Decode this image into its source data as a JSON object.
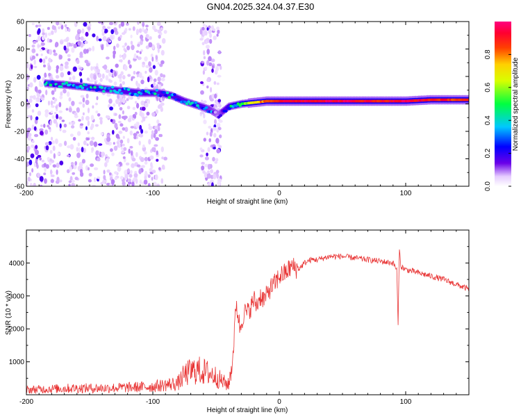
{
  "title": "GN04.2025.324.04.37.E30",
  "chart_data": [
    {
      "type": "heatmap",
      "title": "GN04.2025.324.04.37.E30",
      "xlabel": "Height of straight line (km)",
      "ylabel": "Frequency (Hz)",
      "xlim": [
        -200,
        150
      ],
      "ylim": [
        -60,
        60
      ],
      "xticks": [
        "-200",
        "-100",
        "0",
        "100"
      ],
      "yticks": [
        "-60",
        "-40",
        "-20",
        "0",
        "20",
        "40",
        "60"
      ],
      "colorbar": {
        "label": "Normalized spectral amplitude",
        "range": [
          0,
          1
        ],
        "ticks": [
          "0.0",
          "0.2",
          "0.4",
          "0.6",
          "0.8"
        ]
      },
      "ridge": {
        "x": [
          -185,
          -170,
          -150,
          -130,
          -110,
          -95,
          -85,
          -75,
          -65,
          -55,
          -48,
          -40,
          -30,
          -20,
          -10,
          0,
          20,
          50,
          80,
          100,
          120,
          150
        ],
        "freq": [
          15,
          14,
          12,
          10,
          8,
          8,
          6,
          2,
          -1,
          -4,
          -8,
          -2,
          0,
          1,
          2,
          2,
          2,
          2,
          2,
          2,
          3,
          3
        ],
        "amplitude": [
          0.35,
          0.3,
          0.35,
          0.3,
          0.35,
          0.3,
          0.35,
          0.3,
          0.35,
          0.25,
          0.2,
          0.35,
          0.5,
          0.7,
          0.85,
          0.9,
          0.95,
          0.95,
          0.9,
          0.95,
          0.9,
          0.85
        ]
      },
      "noise_regions": [
        {
          "x_start": -200,
          "x_end": -90,
          "freq_range": [
            -60,
            60
          ]
        },
        {
          "x_start": -62,
          "x_end": -46,
          "freq_range": [
            -60,
            60
          ]
        }
      ]
    },
    {
      "type": "line",
      "xlabel": "Height of straight line (km)",
      "ylabel": "SNR (10 * v/v)",
      "xlim": [
        -200,
        150
      ],
      "ylim": [
        0,
        5000
      ],
      "xticks": [
        "-200",
        "-100",
        "0",
        "100"
      ],
      "yticks": [
        "1000",
        "2000",
        "3000",
        "4000"
      ],
      "color": "#e83232",
      "series": [
        {
          "name": "SNR",
          "x": [
            -200,
            -180,
            -160,
            -140,
            -120,
            -100,
            -90,
            -80,
            -75,
            -70,
            -65,
            -60,
            -55,
            -50,
            -45,
            -40,
            -37,
            -34,
            -31,
            -28,
            -25,
            -22,
            -20,
            -18,
            -15,
            -12,
            -10,
            -8,
            -5,
            -3,
            0,
            5,
            10,
            15,
            20,
            25,
            30,
            40,
            50,
            60,
            70,
            80,
            90,
            93,
            94,
            95,
            96,
            100,
            110,
            120,
            130,
            140,
            150
          ],
          "y": [
            150,
            180,
            200,
            200,
            220,
            250,
            300,
            350,
            600,
            700,
            750,
            700,
            650,
            550,
            400,
            300,
            1000,
            2800,
            2000,
            2500,
            2500,
            2700,
            2900,
            2700,
            3000,
            2900,
            3000,
            3200,
            3300,
            3400,
            3600,
            3700,
            3900,
            3800,
            4000,
            4100,
            4100,
            4200,
            4200,
            4150,
            4100,
            4050,
            4000,
            3800,
            2100,
            4500,
            3900,
            3800,
            3700,
            3600,
            3500,
            3350,
            3200
          ]
        }
      ]
    }
  ]
}
